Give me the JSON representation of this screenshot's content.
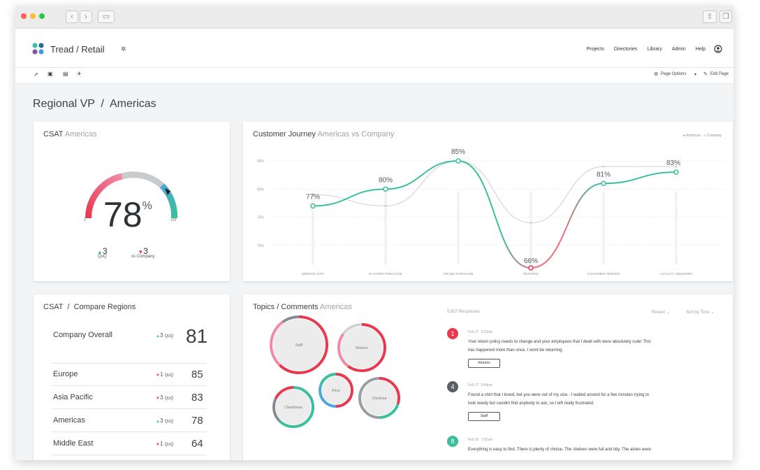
{
  "app": {
    "title": "Tread / Retail"
  },
  "nav": {
    "items": [
      "Projects",
      "Directories",
      "Library",
      "Admin",
      "Help"
    ]
  },
  "toolbar": {
    "page_options": "Page Options",
    "edit_page": "Edit Page"
  },
  "page": {
    "title": "Regional VP  /  Americas"
  },
  "colors": {
    "teal": "#3bbf9c",
    "red": "#e8394e",
    "pink": "#f08aa5",
    "grey": "#cfd2d5"
  },
  "csat": {
    "title": "CSAT",
    "subtitle": "Americas",
    "value": "78",
    "unit": "%",
    "min_label": "0",
    "max_label": "100",
    "gauge_level": 0.78,
    "qoq": {
      "value": "3",
      "label": "QoQ"
    },
    "vs_company": {
      "value": "3",
      "label": "vs Company"
    }
  },
  "journey": {
    "title": "Customer Journey",
    "subtitle": "Americas vs Company",
    "legend": [
      "Americas",
      "Company"
    ],
    "y_ticks": [
      "85%",
      "80%",
      "75%",
      "70%"
    ],
    "point_labels": [
      "77%",
      "80%",
      "85%",
      "66%",
      "81%",
      "83%"
    ]
  },
  "chart_data": {
    "type": "line",
    "categories": [
      "WEBSITE VISIT",
      "IN-STORE PURCHASE",
      "ONLINE PURCHASE",
      "RETURNS",
      "CUSTOMER SERVICE",
      "LOYALTY / REWARDS"
    ],
    "series": [
      {
        "name": "Americas",
        "values": [
          77,
          80,
          85,
          66,
          81,
          83
        ]
      },
      {
        "name": "Company",
        "values": [
          79,
          77,
          85,
          74,
          84,
          84
        ]
      }
    ],
    "ylim": [
      65,
      87
    ],
    "legend_position": "top-right",
    "grid": true
  },
  "compare": {
    "title": "CSAT  /  Compare Regions",
    "rows": [
      {
        "name": "Company Overall",
        "delta": "3",
        "unit": "QoQ",
        "value": "81",
        "dir": "up"
      },
      {
        "name": "Europe",
        "delta": "1",
        "unit": "QoQ",
        "value": "85",
        "dir": "down"
      },
      {
        "name": "Asia Pacific",
        "delta": "3",
        "unit": "QoQ",
        "value": "83",
        "dir": "down"
      },
      {
        "name": "Americas",
        "delta": "3",
        "unit": "QoQ",
        "value": "78",
        "dir": "up"
      },
      {
        "name": "Middle East",
        "delta": "1",
        "unit": "QoQ",
        "value": "64",
        "dir": "down"
      }
    ]
  },
  "topics": {
    "title": "Topics / Comments",
    "subtitle": "Americas",
    "responses": "5,857 Responses",
    "sort1": "Recent",
    "sort2": "Sort by Time",
    "bubbles": [
      "Staff",
      "Returns",
      "Price",
      "Checkout",
      "Cleanliness"
    ],
    "comments": [
      {
        "num": "1",
        "date": "Feb 27  3:02pm",
        "text1": "Your return policy needs to change and your employees that I dealt with were absolutely rude!  This",
        "text2": "has happened more than once.  I wont be returning.",
        "tag": "Returns"
      },
      {
        "num": "4",
        "date": "Feb 27  3:49pm",
        "text1": "Found a shirt that I loved, but you were out of my size - I waited around for a few minutes trying to",
        "text2": "look needy but couldnt find anybody to ask, so I left really frustrated.",
        "tag": "Staff"
      },
      {
        "num": "8",
        "date": "Feb 26  7:02am",
        "text1": "Everything is easy to find. There is plenty of choice. The shelves were full and tidy. The aisles were",
        "text2": "",
        "tag": ""
      }
    ]
  }
}
